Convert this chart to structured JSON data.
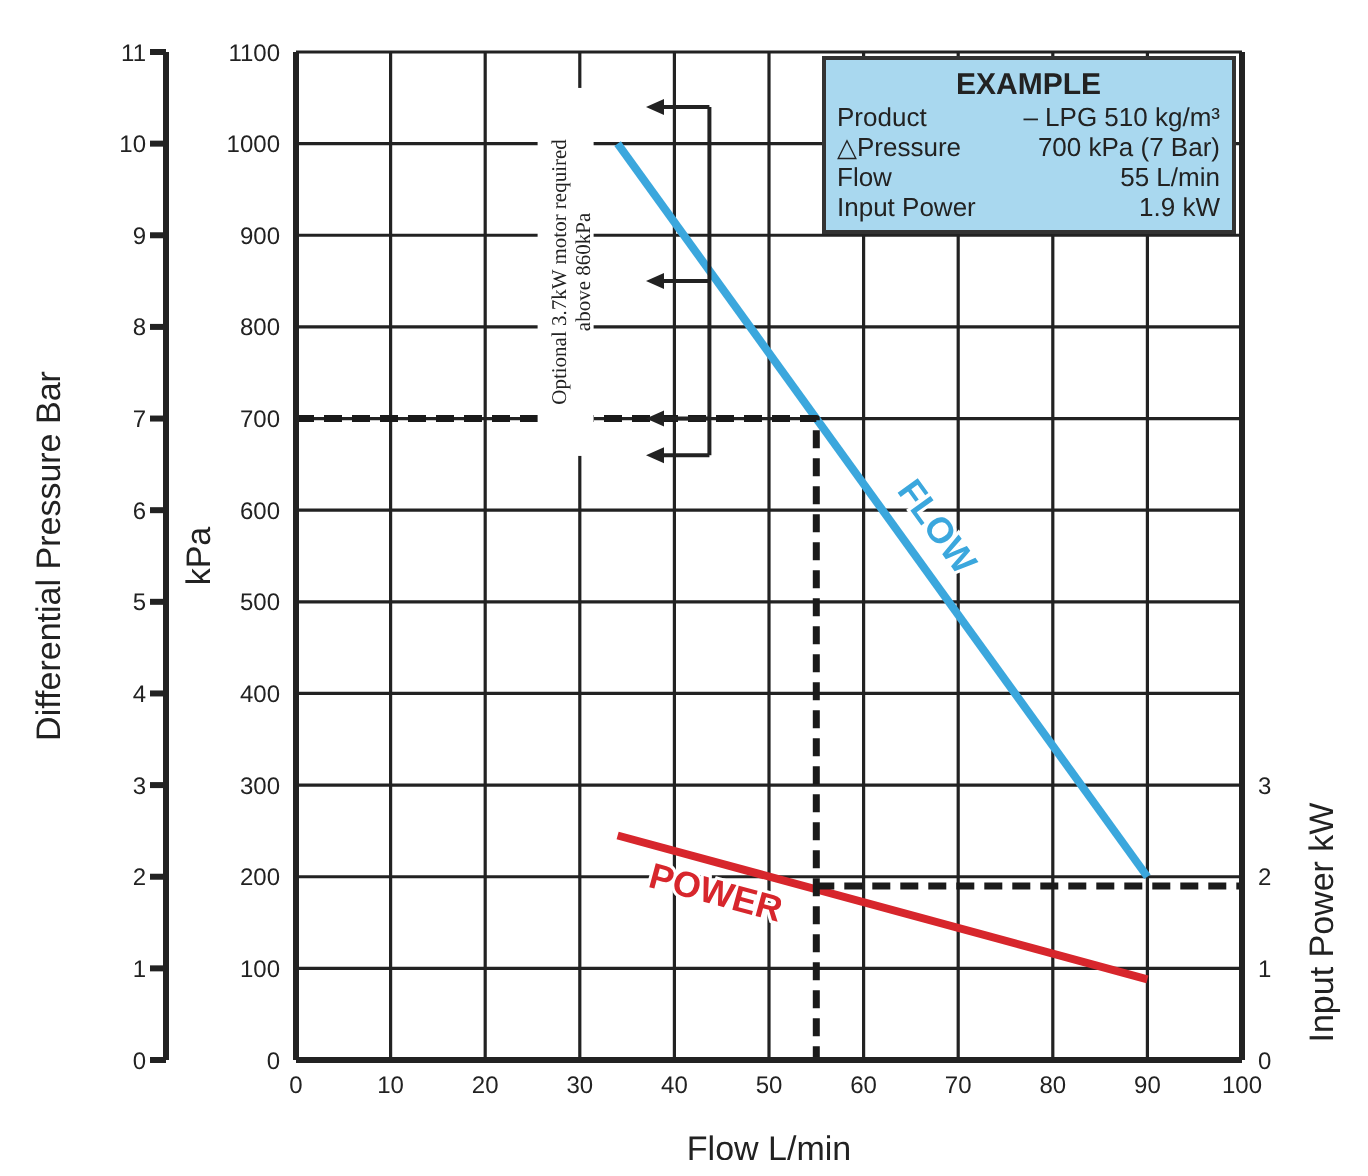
{
  "chart_data": {
    "type": "line",
    "xlabel": "Flow L/min",
    "ylabel": "kPa",
    "y2label": "Differential Pressure Bar",
    "y3label": "Input Power kW",
    "xlim": [
      0,
      100
    ],
    "xticks": [
      0,
      10,
      20,
      30,
      40,
      50,
      60,
      70,
      80,
      90,
      100
    ],
    "ylim": [
      0,
      1100
    ],
    "yticks": [
      0,
      100,
      200,
      300,
      400,
      500,
      600,
      700,
      800,
      900,
      1000,
      1100
    ],
    "y2lim": [
      0,
      11
    ],
    "y2ticks": [
      0,
      1,
      2,
      3,
      4,
      5,
      6,
      7,
      8,
      9,
      10,
      11
    ],
    "y3lim": [
      0,
      11
    ],
    "y3ticks": [
      0,
      1,
      2,
      3
    ],
    "grid": true,
    "legend": false,
    "marker": "none",
    "line_style": "solid",
    "series": [
      {
        "name": "FLOW",
        "color": "#3ba7dd",
        "x": [
          34,
          90
        ],
        "values": [
          1000,
          200
        ]
      },
      {
        "name": "POWER",
        "color": "#d7262c",
        "x": [
          34,
          90
        ],
        "values": [
          2.45,
          0.88
        ],
        "axis": "y3"
      },
      {
        "color": "#1a1a1a",
        "x": [
          0,
          55,
          55
        ],
        "values": [
          700,
          700,
          0
        ],
        "line_style": "dashed"
      },
      {
        "color": "#1a1a1a",
        "x": [
          55,
          100
        ],
        "values": [
          1.9,
          1.9
        ],
        "axis": "y3",
        "line_style": "dashed"
      }
    ],
    "annotations": [
      "Optional 3.7kW motor required above 860kPa",
      "EXAMPLE",
      "Product",
      "– LPG 510 kg/m³",
      "△Pressure",
      "700 kPa (7 Bar)",
      "Flow",
      "55 L/min",
      "Input Power",
      "1.9 kW"
    ]
  }
}
